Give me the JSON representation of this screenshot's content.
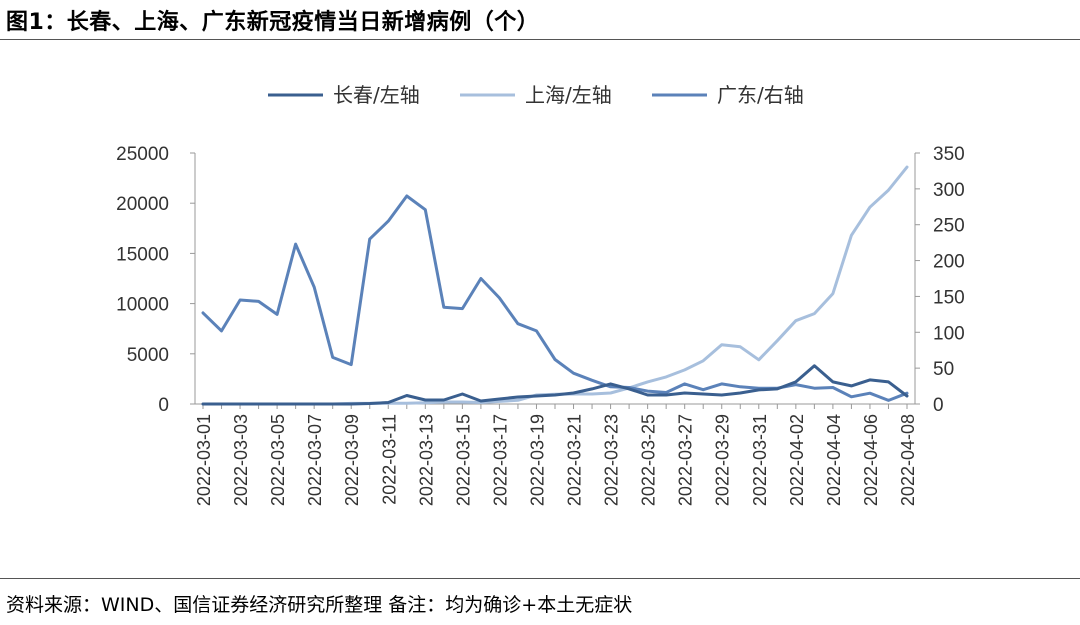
{
  "title": "图1：长春、上海、广东新冠疫情当日新增病例（个）",
  "source": "资料来源：WIND、国信证券经济研究所整理 备注：均为确诊+本土无症状",
  "chart_data": {
    "type": "line",
    "title": "图1：长春、上海、广东新冠疫情当日新增病例（个）",
    "legend_position": "top",
    "grid": false,
    "x": [
      "2022-03-01",
      "2022-03-02",
      "2022-03-03",
      "2022-03-04",
      "2022-03-05",
      "2022-03-06",
      "2022-03-07",
      "2022-03-08",
      "2022-03-09",
      "2022-03-10",
      "2022-03-11",
      "2022-03-12",
      "2022-03-13",
      "2022-03-14",
      "2022-03-15",
      "2022-03-16",
      "2022-03-17",
      "2022-03-18",
      "2022-03-19",
      "2022-03-20",
      "2022-03-21",
      "2022-03-22",
      "2022-03-23",
      "2022-03-24",
      "2022-03-25",
      "2022-03-26",
      "2022-03-27",
      "2022-03-28",
      "2022-03-29",
      "2022-03-30",
      "2022-03-31",
      "2022-04-01",
      "2022-04-02",
      "2022-04-03",
      "2022-04-04",
      "2022-04-05",
      "2022-04-06",
      "2022-04-07",
      "2022-04-08"
    ],
    "x_tick_labels": [
      "2022-03-01",
      "2022-03-03",
      "2022-03-05",
      "2022-03-07",
      "2022-03-09",
      "2022-03-11",
      "2022-03-13",
      "2022-03-15",
      "2022-03-17",
      "2022-03-19",
      "2022-03-21",
      "2022-03-23",
      "2022-03-25",
      "2022-03-27",
      "2022-03-29",
      "2022-03-31",
      "2022-04-02",
      "2022-04-04",
      "2022-04-06",
      "2022-04-08"
    ],
    "y_left": {
      "min": 0,
      "max": 25000,
      "ticks": [
        "0",
        "5000",
        "10000",
        "15000",
        "20000",
        "25000"
      ]
    },
    "y_right": {
      "min": 0,
      "max": 350,
      "ticks": [
        "0",
        "50",
        "100",
        "150",
        "200",
        "250",
        "300",
        "350"
      ]
    },
    "series": [
      {
        "name": "长春/左轴",
        "axis": "left",
        "color": "#3a5f8f",
        "values": [
          0,
          0,
          0,
          0,
          0,
          0,
          0,
          0,
          0,
          50,
          150,
          850,
          400,
          400,
          1000,
          300,
          500,
          700,
          800,
          900,
          1100,
          1500,
          2000,
          1500,
          900,
          900,
          1100,
          1000,
          900,
          1100,
          1400,
          1500,
          2200,
          3800,
          2200,
          1800,
          2400,
          2200,
          800
        ]
      },
      {
        "name": "上海/左轴",
        "axis": "left",
        "color": "#a7bfdd",
        "values": [
          0,
          0,
          0,
          0,
          0,
          0,
          0,
          0,
          60,
          60,
          75,
          65,
          130,
          200,
          200,
          150,
          260,
          370,
          900,
          980,
          1000,
          1000,
          1100,
          1600,
          2200,
          2700,
          3400,
          4300,
          5900,
          5700,
          4400,
          6300,
          8300,
          9000,
          11000,
          16800,
          19600,
          21300,
          23600
        ]
      },
      {
        "name": "广东/右轴",
        "axis": "right",
        "color": "#5b82b9",
        "values": [
          127,
          102,
          145,
          143,
          125,
          223,
          163,
          65,
          55,
          230,
          255,
          290,
          271,
          135,
          133,
          175,
          148,
          112,
          102,
          62,
          43,
          33,
          24,
          23,
          18,
          16,
          28,
          20,
          28,
          24,
          22,
          22,
          27,
          22,
          23,
          10,
          15,
          5,
          15
        ]
      }
    ]
  }
}
